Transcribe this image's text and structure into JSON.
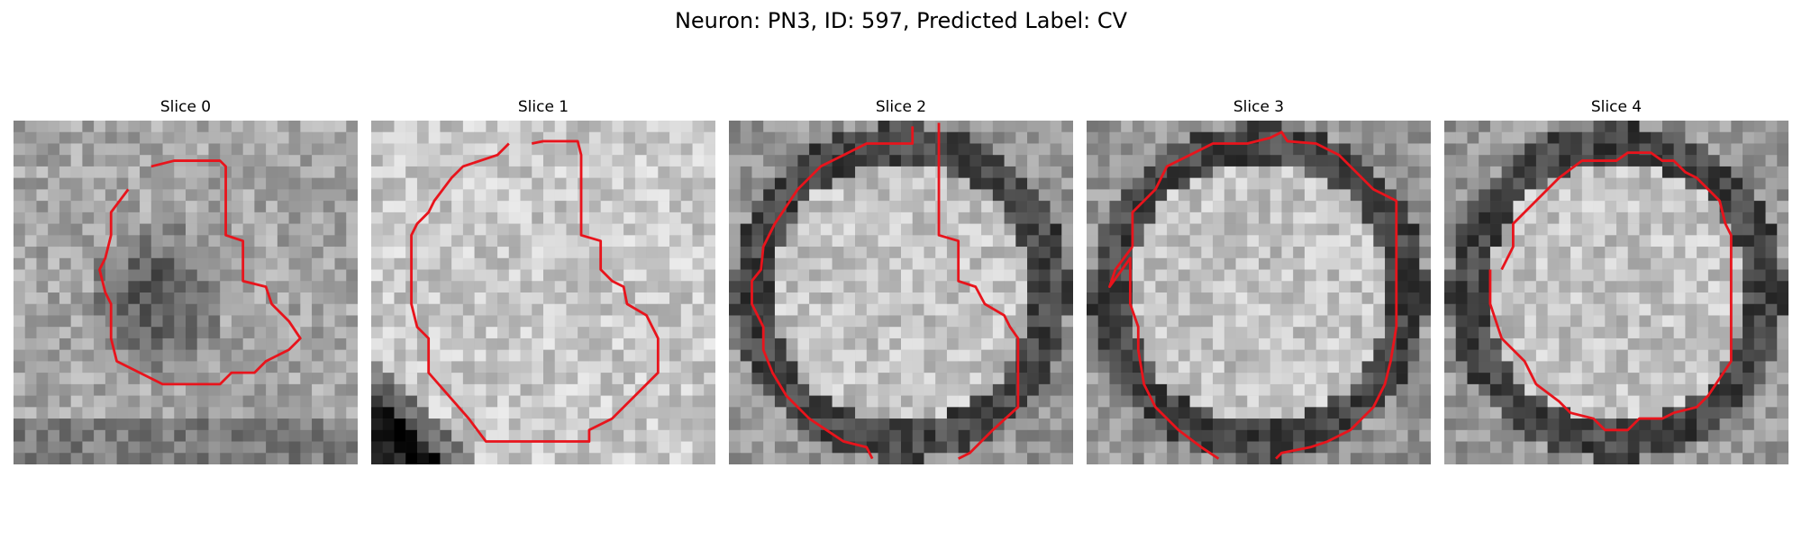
{
  "figure": {
    "title": "Neuron: PN3, ID: 597, Predicted Label: CV"
  },
  "colors": {
    "contour": "#e8141c",
    "ring": "#3a3a3a"
  },
  "panels": [
    {
      "title": "Slice 0",
      "texture": "dark-center-blob"
    },
    {
      "title": "Slice 1",
      "texture": "light-with-dark-corner"
    },
    {
      "title": "Slice 2",
      "texture": "dark-ring"
    },
    {
      "title": "Slice 3",
      "texture": "dark-ring"
    },
    {
      "title": "Slice 4",
      "texture": "dark-ring"
    }
  ]
}
